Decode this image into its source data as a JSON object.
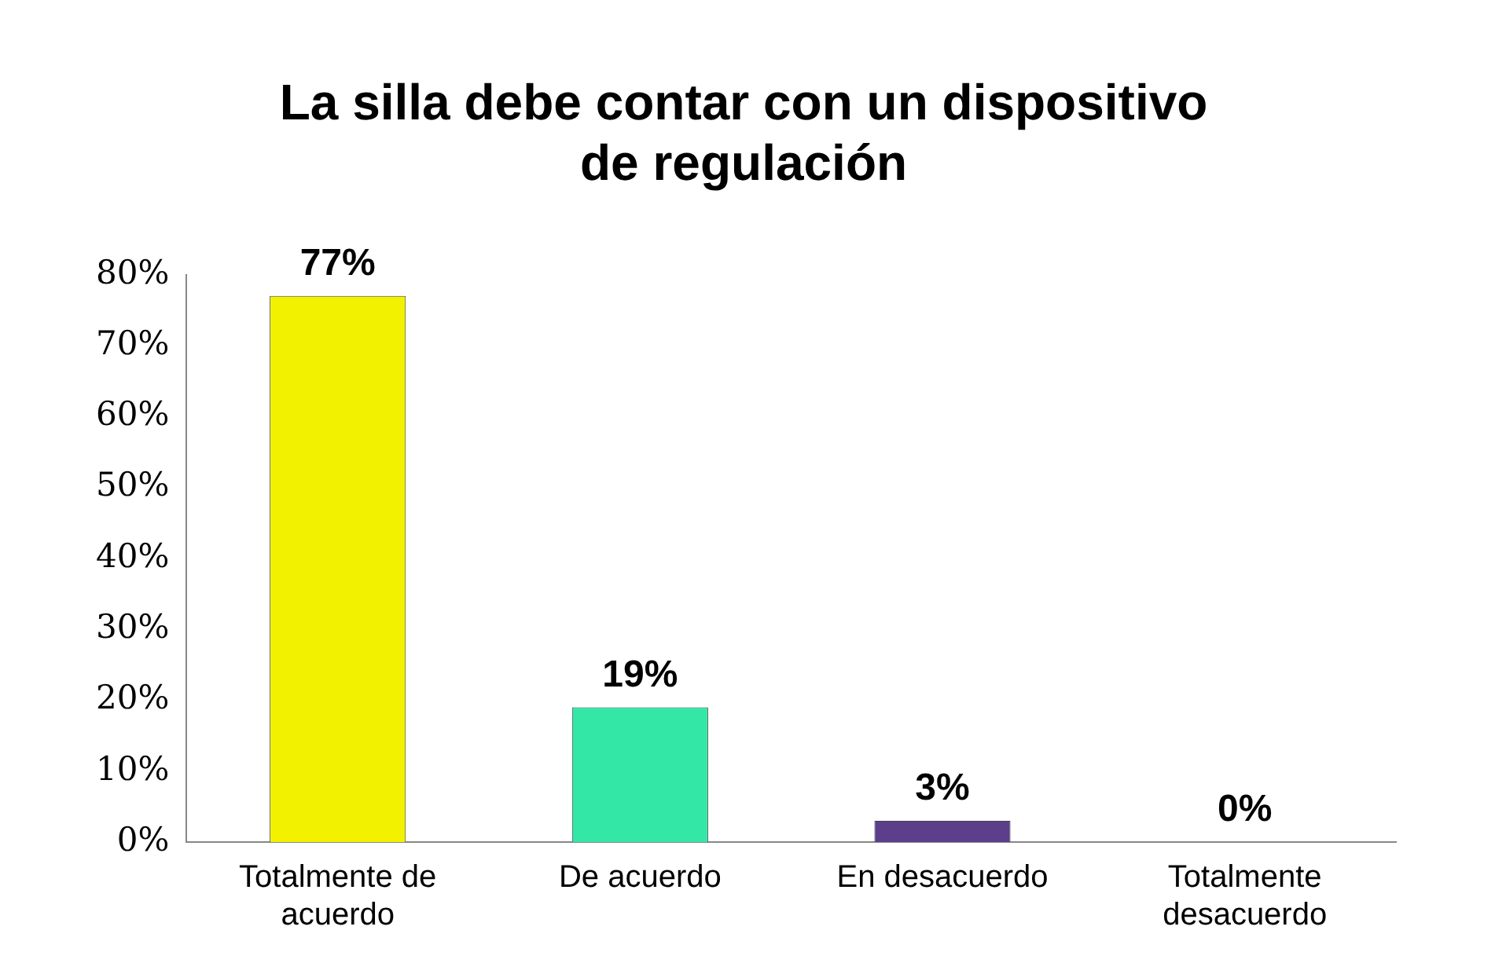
{
  "chart_data": {
    "type": "bar",
    "title": "La silla debe contar con un dispositivo de regulación",
    "categories": [
      "Totalmente de acuerdo",
      "De acuerdo",
      "En desacuerdo",
      "Totalmente desacuerdo"
    ],
    "values": [
      77,
      19,
      3,
      0
    ],
    "colors": [
      "#f2f200",
      "#33e8a6",
      "#5b3f8a",
      "#77a33a"
    ],
    "value_labels": [
      "77%",
      "19%",
      "3%",
      "0%"
    ],
    "ylim": [
      0,
      80
    ],
    "yticks": [
      {
        "value": 0,
        "label": "0%"
      },
      {
        "value": 10,
        "label": "10%"
      },
      {
        "value": 20,
        "label": "20%"
      },
      {
        "value": 30,
        "label": "30%"
      },
      {
        "value": 40,
        "label": "40%"
      },
      {
        "value": 50,
        "label": "50%"
      },
      {
        "value": 60,
        "label": "60%"
      },
      {
        "value": 70,
        "label": "70%"
      },
      {
        "value": 80,
        "label": "80%"
      }
    ],
    "grid": false,
    "legend": false
  }
}
